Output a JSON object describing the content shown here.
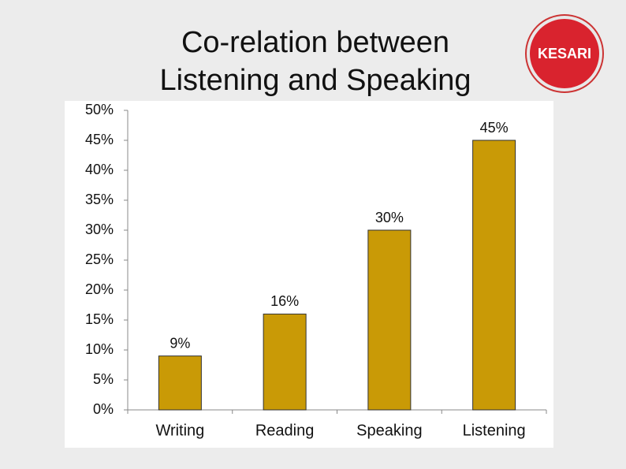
{
  "logo_text": "KESARI",
  "chart_data": {
    "type": "bar",
    "title": "Co-relation between Listening and Speaking",
    "categories": [
      "Writing",
      "Reading",
      "Speaking",
      "Listening"
    ],
    "values": [
      9,
      16,
      30,
      45
    ],
    "value_labels": [
      "9%",
      "16%",
      "30%",
      "45%"
    ],
    "color": "#c99a06",
    "ylim": [
      0,
      50
    ],
    "yticks": [
      {
        "value": 0,
        "label": "0%"
      },
      {
        "value": 5,
        "label": "5%"
      },
      {
        "value": 10,
        "label": "10%"
      },
      {
        "value": 15,
        "label": "15%"
      },
      {
        "value": 20,
        "label": "20%"
      },
      {
        "value": 25,
        "label": "25%"
      },
      {
        "value": 30,
        "label": "30%"
      },
      {
        "value": 35,
        "label": "35%"
      },
      {
        "value": 40,
        "label": "40%"
      },
      {
        "value": 45,
        "label": "45%"
      },
      {
        "value": 50,
        "label": "50%"
      }
    ],
    "grid": false
  }
}
